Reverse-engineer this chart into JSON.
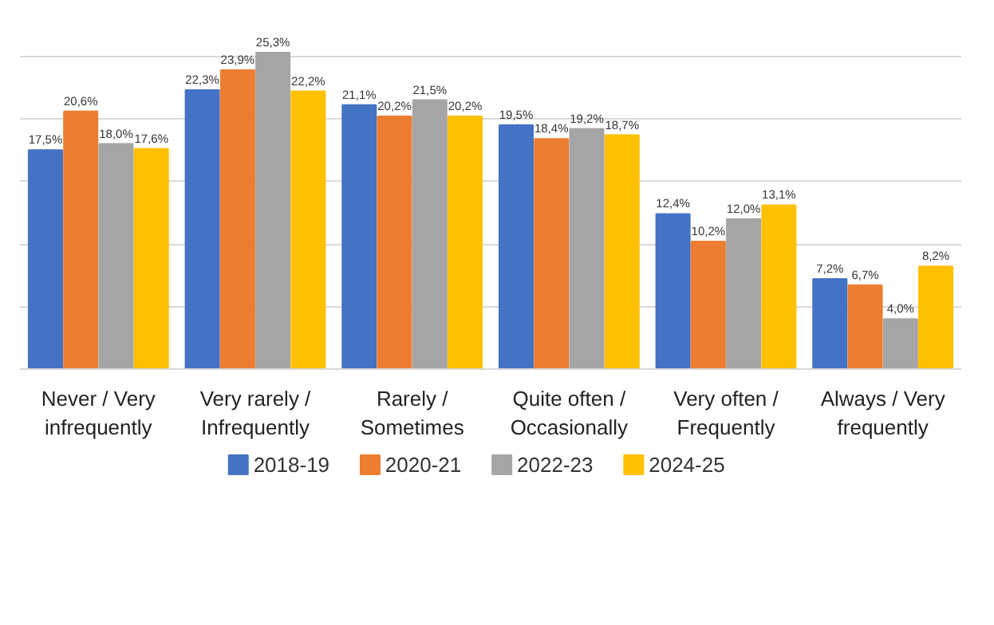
{
  "chart_data": {
    "type": "bar",
    "categories": [
      "Never / Very\ninfrequently",
      "Very rarely /\nInfrequently",
      "Rarely /\nSometimes",
      "Quite often /\nOccasionally",
      "Very often /\nFrequently",
      "Always / Very\nfrequently"
    ],
    "series": [
      {
        "name": "2018-19",
        "color": "#4472c4",
        "values": [
          17.5,
          22.3,
          21.1,
          19.5,
          12.4,
          7.2
        ],
        "value_labels": [
          "17,5%",
          "22,3%",
          "21,1%",
          "19,5%",
          "12,4%",
          "7,2%"
        ]
      },
      {
        "name": "2020-21",
        "color": "#ed7d31",
        "values": [
          20.6,
          23.9,
          20.2,
          18.4,
          10.2,
          6.7
        ],
        "value_labels": [
          "20,6%",
          "23,9%",
          "20,2%",
          "18,4%",
          "10,2%",
          "6,7%"
        ]
      },
      {
        "name": "2022-23",
        "color": "#a5a5a5",
        "values": [
          18.0,
          25.3,
          21.5,
          19.2,
          12.0,
          4.0
        ],
        "value_labels": [
          "18,0%",
          "25,3%",
          "21,5%",
          "19,2%",
          "12,0%",
          "4,0%"
        ]
      },
      {
        "name": "2024-25",
        "color": "#ffc000",
        "values": [
          17.6,
          22.2,
          20.2,
          18.7,
          13.1,
          8.2
        ],
        "value_labels": [
          "17,6%",
          "22,2%",
          "20,2%",
          "18,7%",
          "13,1%",
          "8,2%"
        ]
      }
    ],
    "tick_labels": "x",
    "grid": "y",
    "legend": "bottom"
  }
}
